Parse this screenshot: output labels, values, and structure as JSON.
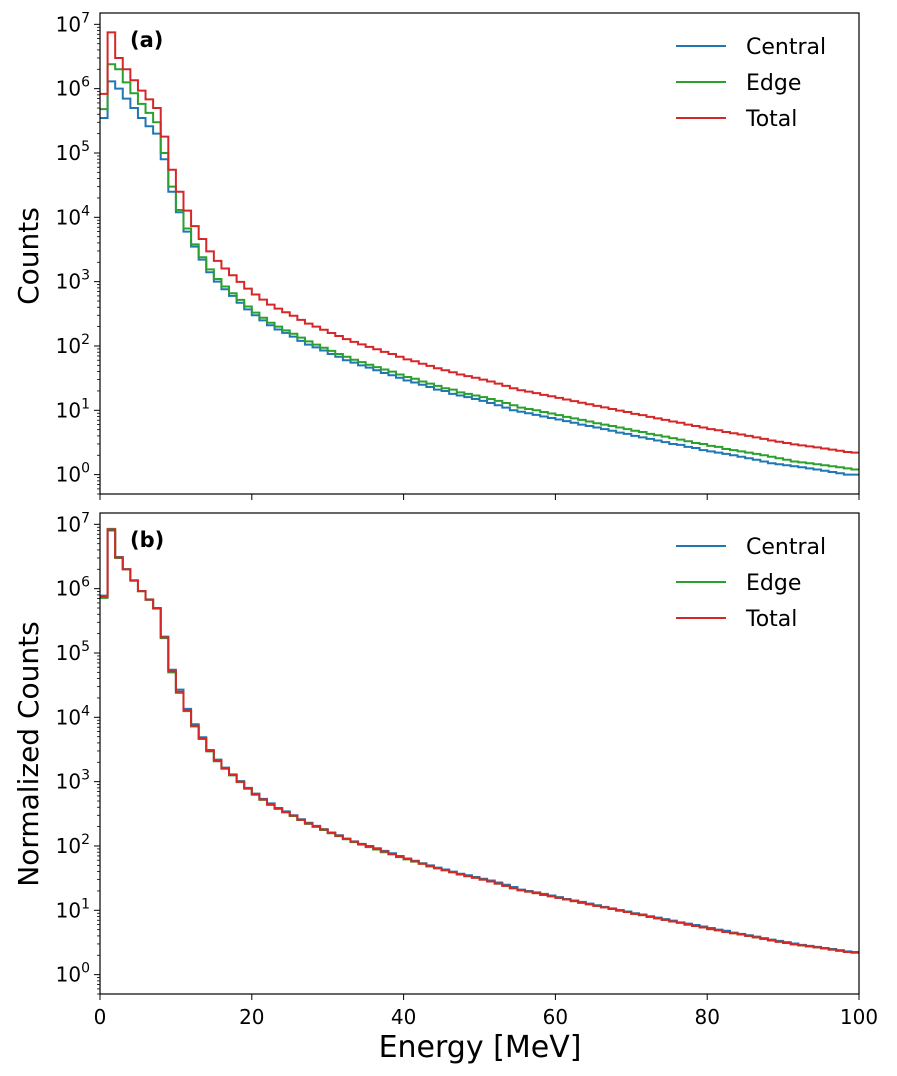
{
  "chart_data": [
    {
      "type": "step-histogram",
      "panel_label": "(a)",
      "ylabel": "Counts",
      "xlabel": "",
      "yscale": "log",
      "xlim": [
        0,
        100
      ],
      "ylim": [
        0.5,
        15000000
      ],
      "x_ticks": [
        0,
        20,
        40,
        60,
        80,
        100
      ],
      "x_tick_labels_shown": false,
      "y_tick_labels": [
        "10^0",
        "10^1",
        "10^2",
        "10^3",
        "10^4",
        "10^5",
        "10^6",
        "10^7"
      ],
      "legend": {
        "position": "top-right",
        "entries": [
          "Central",
          "Edge",
          "Total"
        ]
      },
      "bin_width": 1,
      "series": [
        {
          "name": "Central",
          "color": "#1f77b4",
          "values": [
            350000,
            1300000,
            1000000,
            700000,
            500000,
            350000,
            260000,
            200000,
            80000,
            25000,
            12000,
            6000,
            3500,
            2200,
            1400,
            1000,
            760,
            600,
            470,
            370,
            300,
            250,
            210,
            180,
            160,
            140,
            120,
            105,
            95,
            85,
            75,
            68,
            60,
            55,
            50,
            46,
            42,
            38,
            35,
            32,
            29,
            27,
            25,
            23,
            21,
            20,
            18,
            17,
            16,
            15,
            14,
            13,
            12,
            11,
            10,
            9.5,
            9,
            8.5,
            8,
            7.6,
            7.2,
            6.8,
            6.4,
            6,
            5.7,
            5.4,
            5.1,
            4.8,
            4.5,
            4.3,
            4,
            3.8,
            3.6,
            3.4,
            3.2,
            3,
            2.9,
            2.7,
            2.6,
            2.4,
            2.3,
            2.2,
            2.1,
            2,
            1.9,
            1.8,
            1.7,
            1.6,
            1.5,
            1.45,
            1.4,
            1.35,
            1.3,
            1.25,
            1.2,
            1.15,
            1.1,
            1.05,
            1,
            1
          ]
        },
        {
          "name": "Edge",
          "color": "#2ca02c",
          "values": [
            480000,
            2400000,
            2000000,
            1250000,
            850000,
            580000,
            420000,
            300000,
            100000,
            30000,
            13000,
            6700,
            3800,
            2400,
            1550,
            1100,
            840,
            660,
            520,
            410,
            330,
            275,
            230,
            200,
            175,
            155,
            135,
            118,
            105,
            94,
            84,
            75,
            68,
            61,
            56,
            51,
            47,
            43,
            40,
            36,
            33,
            31,
            28,
            26,
            24,
            22,
            21,
            19,
            18,
            17,
            16,
            15,
            14,
            13,
            12,
            11,
            10.5,
            10,
            9.4,
            8.9,
            8.4,
            7.9,
            7.5,
            7.1,
            6.7,
            6.3,
            6,
            5.7,
            5.4,
            5.1,
            4.8,
            4.6,
            4.3,
            4.1,
            3.9,
            3.7,
            3.5,
            3.3,
            3.1,
            3,
            2.8,
            2.7,
            2.5,
            2.4,
            2.3,
            2.2,
            2.1,
            2,
            1.9,
            1.8,
            1.7,
            1.6,
            1.55,
            1.5,
            1.45,
            1.4,
            1.35,
            1.3,
            1.25,
            1.2
          ]
        },
        {
          "name": "Total",
          "color": "#d62728",
          "values": [
            830000,
            7500000,
            3000000,
            2000000,
            1350000,
            930000,
            680000,
            500000,
            180000,
            55000,
            25000,
            12700,
            7300,
            4600,
            2950,
            2100,
            1600,
            1260,
            990,
            780,
            630,
            525,
            440,
            380,
            335,
            295,
            255,
            223,
            200,
            179,
            159,
            143,
            128,
            116,
            106,
            97,
            89,
            81,
            75,
            68,
            62,
            58,
            53,
            49,
            45,
            42,
            39,
            36,
            34,
            32,
            30,
            28,
            26,
            24,
            22,
            20.5,
            19.5,
            18.5,
            17.4,
            16.5,
            15.6,
            14.7,
            13.9,
            13.1,
            12.4,
            11.7,
            11.1,
            10.5,
            9.9,
            9.4,
            8.8,
            8.4,
            7.9,
            7.5,
            7.1,
            6.7,
            6.4,
            6,
            5.7,
            5.4,
            5.1,
            4.9,
            4.6,
            4.4,
            4.2,
            4,
            3.8,
            3.6,
            3.4,
            3.25,
            3.1,
            2.95,
            2.85,
            2.75,
            2.65,
            2.55,
            2.45,
            2.35,
            2.25,
            2.2
          ]
        }
      ]
    },
    {
      "type": "step-histogram",
      "panel_label": "(b)",
      "ylabel": "Normalized Counts",
      "xlabel": "Energy [MeV]",
      "yscale": "log",
      "xlim": [
        0,
        100
      ],
      "ylim": [
        0.5,
        15000000
      ],
      "x_ticks": [
        0,
        20,
        40,
        60,
        80,
        100
      ],
      "x_tick_labels": [
        "0",
        "20",
        "40",
        "60",
        "80",
        "100"
      ],
      "y_tick_labels": [
        "10^0",
        "10^1",
        "10^2",
        "10^3",
        "10^4",
        "10^5",
        "10^6",
        "10^7"
      ],
      "legend": {
        "position": "top-right",
        "entries": [
          "Central",
          "Edge",
          "Total"
        ]
      },
      "bin_width": 1,
      "series": [
        {
          "name": "Central",
          "color": "#1f77b4",
          "values": [
            780000,
            8000000,
            3100000,
            2000000,
            1350000,
            920000,
            680000,
            500000,
            180000,
            55000,
            27000,
            13500,
            7800,
            4900,
            3100,
            2200,
            1650,
            1300,
            1020,
            800,
            650,
            540,
            460,
            390,
            345,
            300,
            260,
            230,
            205,
            183,
            162,
            147,
            130,
            118,
            108,
            100,
            92,
            84,
            77,
            70,
            64,
            59,
            54,
            50,
            46,
            43,
            40,
            37,
            35,
            33,
            31,
            29,
            27,
            25,
            23,
            21,
            20,
            19,
            18,
            17,
            16,
            15,
            14.2,
            13.5,
            12.7,
            12,
            11.3,
            10.7,
            10.1,
            9.6,
            9,
            8.6,
            8.1,
            7.7,
            7.3,
            6.9,
            6.5,
            6.2,
            5.9,
            5.6,
            5.3,
            5,
            4.8,
            4.5,
            4.3,
            4.1,
            3.9,
            3.7,
            3.5,
            3.35,
            3.2,
            3.05,
            2.9,
            2.8,
            2.7,
            2.6,
            2.5,
            2.4,
            2.3,
            2.25
          ]
        },
        {
          "name": "Edge",
          "color": "#2ca02c",
          "values": [
            720000,
            8500000,
            3000000,
            2000000,
            1330000,
            910000,
            670000,
            490000,
            170000,
            50000,
            24000,
            12500,
            7200,
            4600,
            2950,
            2080,
            1590,
            1250,
            985,
            775,
            625,
            520,
            436,
            377,
            333,
            293,
            253,
            221,
            198,
            177,
            158,
            142,
            127,
            115,
            105,
            96,
            88,
            80,
            74,
            67,
            62,
            57,
            53,
            48,
            45,
            42,
            39,
            36,
            34,
            32,
            30,
            28,
            26,
            24,
            22,
            20.5,
            19.5,
            18.5,
            17.4,
            16.5,
            15.6,
            14.7,
            13.9,
            13.1,
            12.4,
            11.7,
            11.1,
            10.5,
            9.9,
            9.4,
            8.8,
            8.4,
            7.9,
            7.5,
            7.1,
            6.7,
            6.4,
            6,
            5.7,
            5.4,
            5.1,
            4.9,
            4.6,
            4.4,
            4.2,
            4,
            3.8,
            3.6,
            3.4,
            3.25,
            3.1,
            2.95,
            2.85,
            2.75,
            2.65,
            2.55,
            2.45,
            2.35,
            2.25,
            2.2
          ]
        },
        {
          "name": "Total",
          "color": "#d62728",
          "values": [
            750000,
            8300000,
            3050000,
            2000000,
            1340000,
            915000,
            675000,
            495000,
            175000,
            52000,
            25000,
            12800,
            7400,
            4700,
            3000,
            2100,
            1610,
            1270,
            995,
            785,
            635,
            528,
            442,
            382,
            337,
            296,
            256,
            224,
            201,
            180,
            160,
            144,
            129,
            117,
            107,
            98,
            90,
            82,
            75,
            68,
            63,
            58,
            53,
            49,
            45,
            42,
            39,
            36,
            34,
            32,
            30,
            28,
            26,
            24,
            22,
            20.5,
            19.5,
            18.5,
            17.4,
            16.5,
            15.6,
            14.7,
            13.9,
            13.1,
            12.4,
            11.7,
            11.1,
            10.5,
            9.9,
            9.4,
            8.8,
            8.4,
            7.9,
            7.5,
            7.1,
            6.7,
            6.4,
            6,
            5.7,
            5.4,
            5.1,
            4.9,
            4.6,
            4.4,
            4.2,
            4,
            3.8,
            3.6,
            3.4,
            3.25,
            3.1,
            2.95,
            2.85,
            2.75,
            2.65,
            2.55,
            2.45,
            2.35,
            2.25,
            2.2
          ]
        }
      ]
    }
  ]
}
